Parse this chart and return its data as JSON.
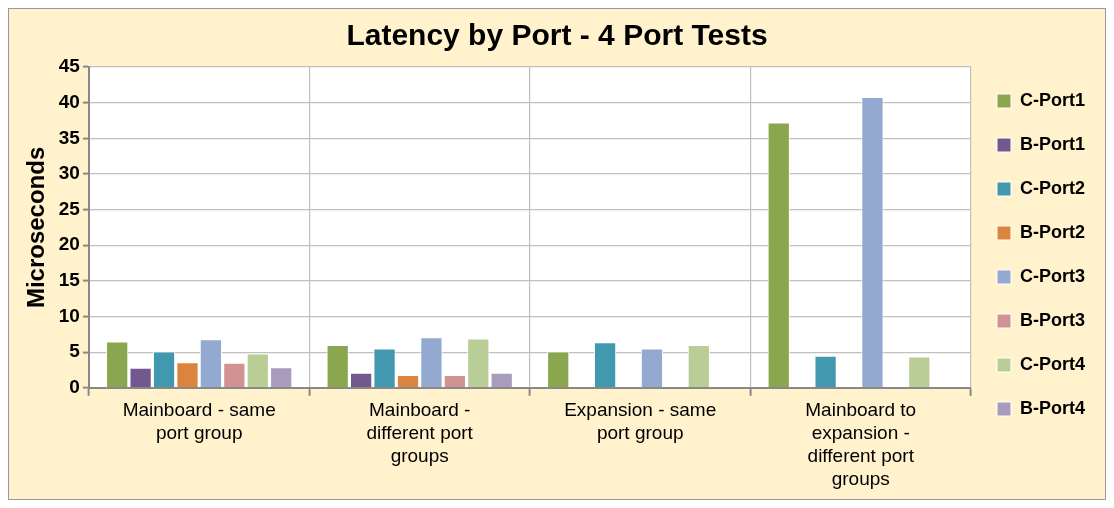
{
  "chart_data": {
    "type": "bar",
    "title": "Latency by Port - 4 Port Tests",
    "ylabel": "Microseconds",
    "categories": [
      "Mainboard - same port group",
      "Mainboard - different port groups",
      "Expansion - same port group",
      "Mainboard to expansion - different port groups"
    ],
    "series": [
      {
        "name": "C-Port1",
        "color": "#8aa64e",
        "values": [
          6.5,
          6.0,
          5.1,
          37.2
        ]
      },
      {
        "name": "B-Port1",
        "color": "#71588f",
        "values": [
          2.8,
          2.1,
          null,
          null
        ]
      },
      {
        "name": "C-Port2",
        "color": "#4198af",
        "values": [
          5.1,
          5.5,
          6.4,
          4.5
        ]
      },
      {
        "name": "B-Port2",
        "color": "#db843d",
        "values": [
          3.6,
          1.8,
          null,
          null
        ]
      },
      {
        "name": "C-Port3",
        "color": "#93a9cf",
        "values": [
          6.8,
          7.1,
          5.5,
          40.8
        ]
      },
      {
        "name": "B-Port3",
        "color": "#d19392",
        "values": [
          3.5,
          1.8,
          null,
          null
        ]
      },
      {
        "name": "C-Port4",
        "color": "#b9cd96",
        "values": [
          4.8,
          6.9,
          6.0,
          4.4
        ]
      },
      {
        "name": "B-Port4",
        "color": "#a99bbd",
        "values": [
          2.9,
          2.1,
          null,
          null
        ]
      }
    ],
    "ylim": [
      0,
      45
    ],
    "yticks": [
      0,
      5,
      10,
      15,
      20,
      25,
      30,
      35,
      40,
      45
    ],
    "grid": true,
    "legend": "right"
  }
}
